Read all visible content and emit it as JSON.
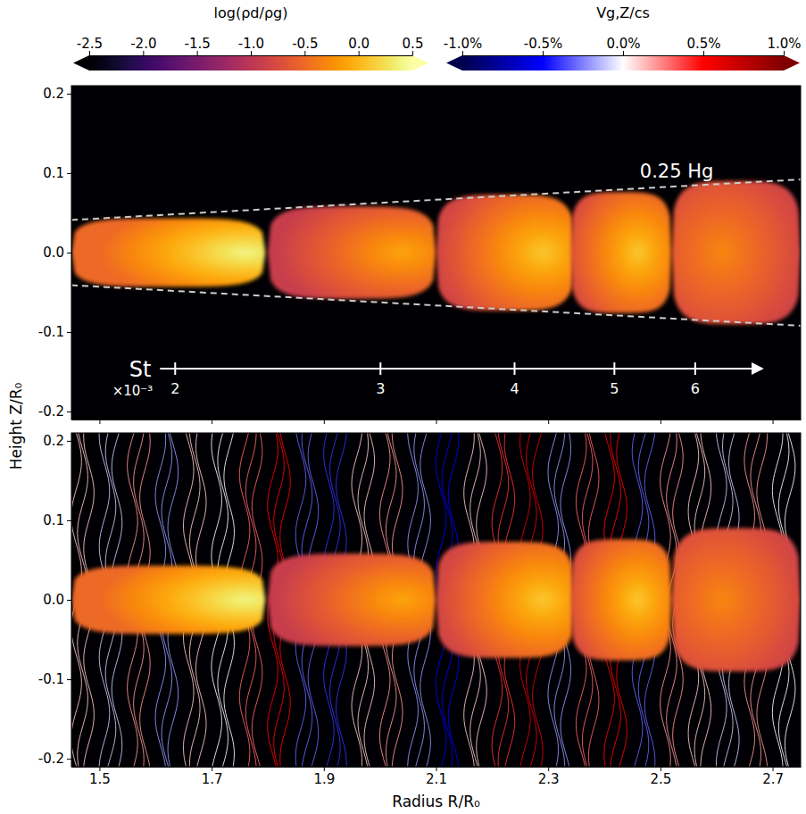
{
  "chart_data": {
    "type": "heatmap",
    "x_label": "Radius R/R₀",
    "y_label": "Height Z/R₀",
    "xlim": [
      1.45,
      2.75
    ],
    "xticks": [
      1.5,
      1.7,
      1.9,
      2.1,
      2.3,
      2.5,
      2.7
    ],
    "ylim": [
      -0.21,
      0.21
    ],
    "yticks": [
      -0.2,
      -0.1,
      {
        "value": 0,
        "label": "0.0"
      },
      0.1,
      0.2
    ],
    "background_log_ratio": -3,
    "colorbars": [
      {
        "title": "log(ρd/ρg)",
        "range": [
          -2.5,
          0.5
        ],
        "ticks": [
          -2.5,
          {
            "value": -2.0,
            "label": "-2.0"
          },
          -1.5,
          {
            "value": -1.0,
            "label": "-1.0"
          },
          -0.5,
          {
            "value": 0.0,
            "label": "0.0"
          },
          0.5
        ]
      },
      {
        "title": "Vg,Z/cs",
        "range": [
          -1.0,
          1.0
        ],
        "ticks": [
          {
            "value": -1.0,
            "label": "-1.0%"
          },
          {
            "value": -0.5,
            "label": "-0.5%"
          },
          {
            "value": 0.0,
            "label": "0.0%"
          },
          {
            "value": 0.5,
            "label": "0.5%"
          },
          {
            "value": 1.0,
            "label": "1.0%"
          }
        ]
      }
    ],
    "scale_height": {
      "label": "0.25 Hg",
      "r": [
        1.45,
        2.75
      ],
      "z_upper": [
        0.041,
        0.092
      ],
      "z_lower": [
        -0.041,
        -0.092
      ]
    },
    "stokes": {
      "label": "St",
      "multiplier": "×10⁻³",
      "r": [
        1.608,
        2.68
      ],
      "z": -0.146,
      "ticks": [
        {
          "value": 2,
          "r": 1.635
        },
        {
          "value": 3,
          "r": 2.001
        },
        {
          "value": 4,
          "r": 2.24
        },
        {
          "value": 5,
          "r": 2.418
        },
        {
          "value": 6,
          "r": 2.562
        }
      ]
    },
    "layer": [
      {
        "r": [
          1.45,
          1.796
        ],
        "half_height": 0.043,
        "peak_r": 1.76,
        "peak": 0.4,
        "edge": -0.5
      },
      {
        "r": [
          1.8,
          2.1
        ],
        "half_height": 0.058,
        "peak_r": 2.04,
        "peak": -0.1,
        "edge": -0.9
      },
      {
        "r": [
          2.1,
          2.347
        ],
        "half_height": 0.073,
        "peak_r": 2.29,
        "peak": 0.1,
        "edge": -0.8
      },
      {
        "r": [
          2.34,
          2.52
        ],
        "half_height": 0.076,
        "peak_r": 2.46,
        "peak": 0.1,
        "edge": -0.8
      },
      {
        "r": [
          2.52,
          2.75
        ],
        "half_height": 0.09,
        "peak_r": 2.61,
        "peak": -0.3,
        "edge": -0.9
      }
    ],
    "streamlines": {
      "r": [
        1.47,
        1.52,
        1.57,
        1.62,
        1.67,
        1.72,
        1.77,
        1.82,
        1.87,
        1.92,
        1.97,
        2.02,
        2.07,
        2.12,
        2.17,
        2.22,
        2.27,
        2.32,
        2.37,
        2.42,
        2.47,
        2.52,
        2.57,
        2.62,
        2.67,
        2.72
      ],
      "vz": [
        0.1,
        -0.1,
        0.2,
        -0.2,
        0.1,
        0.0,
        0.3,
        0.5,
        -0.3,
        -0.4,
        0.1,
        0.2,
        -0.2,
        -0.5,
        0.1,
        0.4,
        0.6,
        -0.2,
        0.3,
        0.5,
        -0.3,
        0.2,
        0.1,
        -0.1,
        0.2,
        0.0
      ]
    }
  }
}
